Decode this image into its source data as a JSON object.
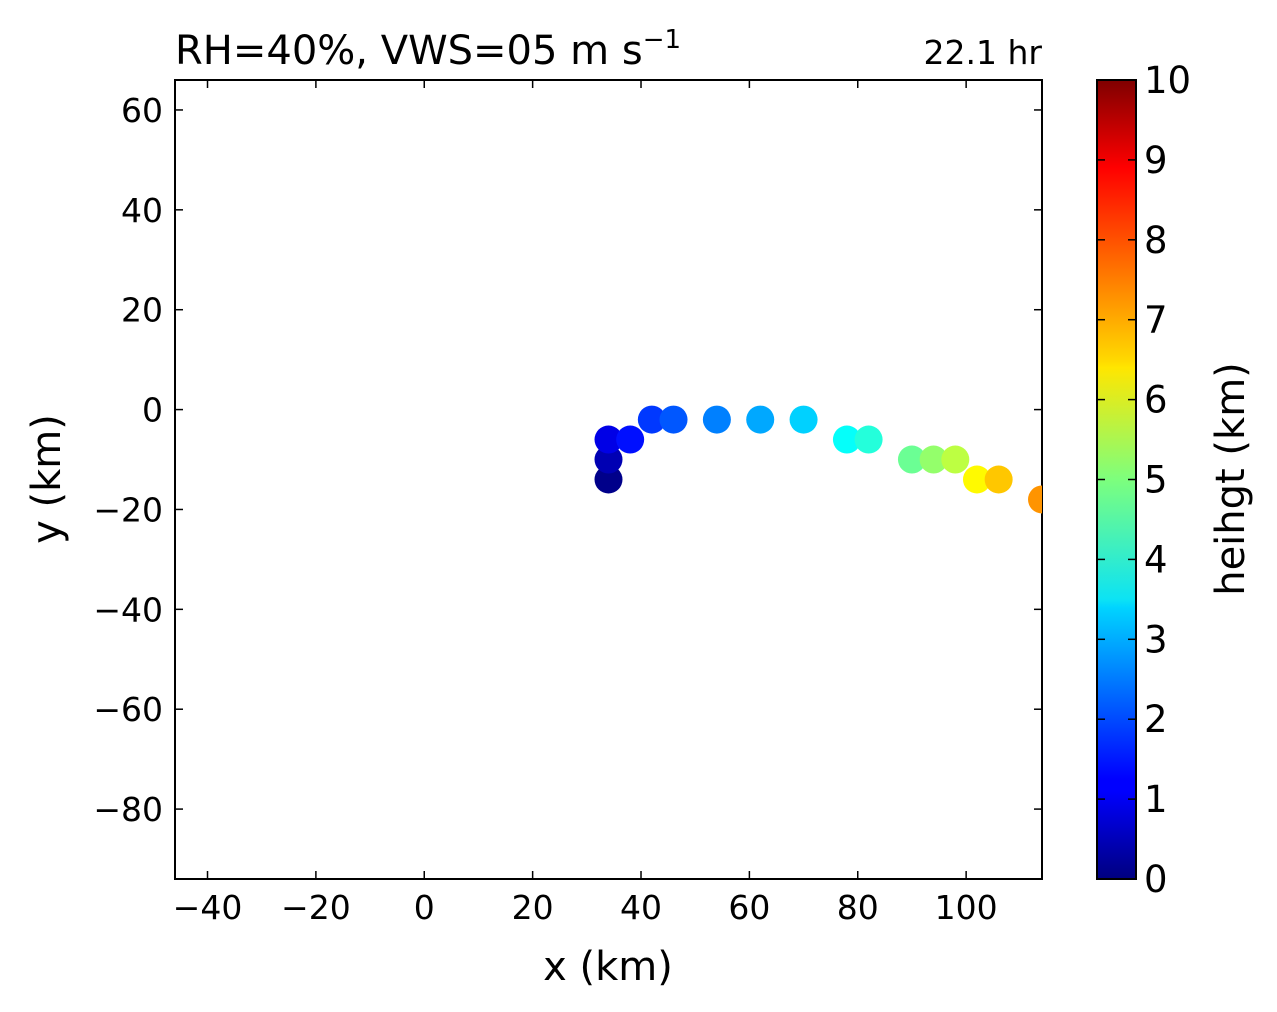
{
  "chart_data": {
    "type": "scatter",
    "title": "RH=40%, VWS=05 m s",
    "title_superscript": "−1",
    "annotation": "22.1 hr",
    "annotation_color": "#0000ff",
    "xlabel": "x (km)",
    "ylabel": "y (km)",
    "xlim": [
      -46,
      114
    ],
    "ylim": [
      -94,
      66
    ],
    "xticks": [
      -40,
      -20,
      0,
      20,
      40,
      60,
      80,
      100
    ],
    "xtick_labels": [
      "−40",
      "−20",
      "0",
      "20",
      "40",
      "60",
      "80",
      "100"
    ],
    "yticks": [
      60,
      40,
      20,
      0,
      -20,
      -40,
      -60,
      -80
    ],
    "ytick_labels": [
      "60",
      "40",
      "20",
      "0",
      "−20",
      "−40",
      "−60",
      "−80"
    ],
    "grid": false,
    "colorbar": {
      "label": "heihgt (km)",
      "colormap": "jet",
      "min": 0,
      "max": 10,
      "ticks": [
        0,
        1,
        2,
        3,
        4,
        5,
        6,
        7,
        8,
        9,
        10
      ],
      "tick_labels": [
        "0",
        "1",
        "2",
        "3",
        "4",
        "5",
        "6",
        "7",
        "8",
        "9",
        "10"
      ]
    },
    "points": [
      {
        "x": 34,
        "y": -14,
        "height": 0.1
      },
      {
        "x": 34,
        "y": -10,
        "height": 0.5
      },
      {
        "x": 34,
        "y": -6,
        "height": 1.0
      },
      {
        "x": 38,
        "y": -6,
        "height": 1.4
      },
      {
        "x": 42,
        "y": -2,
        "height": 1.8
      },
      {
        "x": 46,
        "y": -2,
        "height": 2.1
      },
      {
        "x": 54,
        "y": -2,
        "height": 2.5
      },
      {
        "x": 62,
        "y": -2,
        "height": 2.9
      },
      {
        "x": 70,
        "y": -2,
        "height": 3.3
      },
      {
        "x": 78,
        "y": -6,
        "height": 3.8
      },
      {
        "x": 82,
        "y": -6,
        "height": 4.1
      },
      {
        "x": 90,
        "y": -10,
        "height": 4.8
      },
      {
        "x": 94,
        "y": -10,
        "height": 5.2
      },
      {
        "x": 98,
        "y": -10,
        "height": 5.6
      },
      {
        "x": 102,
        "y": -14,
        "height": 6.3
      },
      {
        "x": 106,
        "y": -14,
        "height": 6.8
      },
      {
        "x": 114,
        "y": -18,
        "height": 7.3
      }
    ]
  }
}
